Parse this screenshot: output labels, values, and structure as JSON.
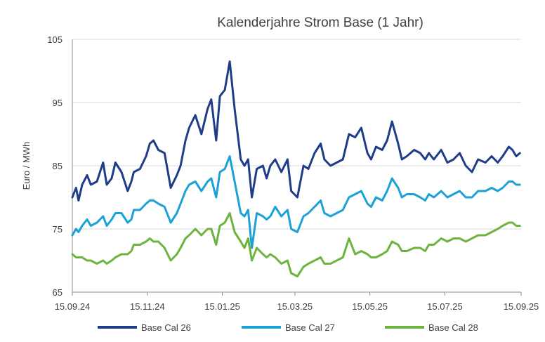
{
  "chart_data": {
    "type": "line",
    "title": "Kalenderjahre Strom Base (1 Jahr)",
    "xlabel": "",
    "ylabel": "Euro / MWh",
    "ylim": [
      65,
      105
    ],
    "yticks": [
      65,
      75,
      85,
      95,
      105
    ],
    "xlim": [
      0,
      365
    ],
    "xticks": [
      {
        "label": "15.09.24",
        "x": 0
      },
      {
        "label": "15.11.24",
        "x": 61
      },
      {
        "label": "15.01.25",
        "x": 122
      },
      {
        "label": "15.03.25",
        "x": 181
      },
      {
        "label": "15.05.25",
        "x": 242
      },
      {
        "label": "15.07.25",
        "x": 303
      },
      {
        "label": "15.09.25",
        "x": 365
      }
    ],
    "grid": true,
    "legend_position": "bottom",
    "series": [
      {
        "name": "Base Cal 26",
        "color": "#1f3c88",
        "x": [
          0,
          3,
          5,
          8,
          12,
          15,
          20,
          25,
          28,
          32,
          35,
          40,
          45,
          48,
          50,
          55,
          60,
          63,
          66,
          70,
          75,
          80,
          85,
          88,
          92,
          95,
          100,
          105,
          110,
          113,
          117,
          120,
          124,
          128,
          132,
          137,
          140,
          143,
          146,
          150,
          155,
          158,
          161,
          165,
          170,
          175,
          178,
          183,
          188,
          192,
          197,
          202,
          205,
          210,
          215,
          220,
          225,
          230,
          235,
          240,
          243,
          247,
          252,
          256,
          260,
          265,
          268,
          272,
          278,
          283,
          287,
          290,
          294,
          300,
          305,
          310,
          315,
          320,
          325,
          330,
          336,
          341,
          346,
          350,
          355,
          358,
          361,
          364
        ],
        "values": [
          80,
          81.5,
          79.5,
          82,
          83.5,
          82,
          82.5,
          85.5,
          82,
          83,
          85.5,
          84,
          81,
          82.5,
          84,
          84.5,
          86.5,
          88.5,
          89,
          87.5,
          87,
          81.5,
          83.5,
          85,
          89,
          91,
          93,
          90,
          94,
          95.5,
          89,
          96,
          97,
          101.5,
          94,
          86,
          85,
          86,
          80,
          84.5,
          85,
          83,
          85,
          86,
          84,
          86,
          81,
          80,
          85,
          84.5,
          87,
          88.5,
          86,
          85,
          85.5,
          86,
          90,
          89.5,
          91,
          87,
          86,
          88,
          87.5,
          89,
          92,
          88.5,
          86,
          86.5,
          87.5,
          87,
          86,
          87,
          86,
          87.5,
          85.5,
          86,
          87,
          85,
          84,
          86,
          85.5,
          86.5,
          85.5,
          86.5,
          88,
          87.5,
          86.5,
          87
        ]
      },
      {
        "name": "Base Cal 27",
        "color": "#1ba1d6",
        "x": [
          0,
          3,
          5,
          8,
          12,
          15,
          20,
          25,
          28,
          32,
          35,
          40,
          45,
          48,
          50,
          55,
          60,
          63,
          66,
          70,
          75,
          80,
          85,
          88,
          92,
          95,
          100,
          105,
          110,
          113,
          117,
          120,
          124,
          128,
          132,
          137,
          140,
          143,
          146,
          150,
          155,
          158,
          161,
          165,
          170,
          175,
          178,
          183,
          188,
          192,
          197,
          202,
          205,
          210,
          215,
          220,
          225,
          230,
          235,
          240,
          243,
          247,
          252,
          256,
          260,
          265,
          268,
          272,
          278,
          283,
          287,
          290,
          294,
          300,
          305,
          310,
          315,
          320,
          325,
          330,
          336,
          341,
          346,
          350,
          355,
          358,
          361,
          364
        ],
        "values": [
          74,
          75,
          74.5,
          75.5,
          76.5,
          75.5,
          76,
          77,
          75.5,
          76.5,
          77.5,
          77.5,
          76,
          76.5,
          78,
          78,
          79,
          79.5,
          79.5,
          79,
          78.5,
          76,
          77.5,
          79,
          81,
          82,
          82.5,
          81,
          82.5,
          83,
          80,
          84,
          84.5,
          86.5,
          82.5,
          77.5,
          77,
          78,
          72,
          77.5,
          77,
          76.5,
          77,
          78.5,
          77,
          78,
          75,
          74.5,
          77,
          77.5,
          78.5,
          79.5,
          77.5,
          77,
          77.5,
          78,
          80,
          80.5,
          81,
          79,
          78.5,
          80,
          79.5,
          81,
          83,
          81.5,
          80,
          80.5,
          80.5,
          80,
          79.5,
          80.5,
          80,
          81,
          80,
          80.5,
          81,
          80,
          80,
          81,
          81,
          81.5,
          81,
          81.5,
          82.5,
          82.5,
          82,
          82
        ]
      },
      {
        "name": "Base Cal 28",
        "color": "#6db33f",
        "x": [
          0,
          3,
          5,
          8,
          12,
          15,
          20,
          25,
          28,
          32,
          35,
          40,
          45,
          48,
          50,
          55,
          60,
          63,
          66,
          70,
          75,
          80,
          85,
          88,
          92,
          95,
          100,
          105,
          110,
          113,
          117,
          120,
          124,
          128,
          132,
          137,
          140,
          143,
          146,
          150,
          155,
          158,
          161,
          165,
          170,
          175,
          178,
          183,
          188,
          192,
          197,
          202,
          205,
          210,
          215,
          220,
          225,
          230,
          235,
          240,
          243,
          247,
          252,
          256,
          260,
          265,
          268,
          272,
          278,
          283,
          287,
          290,
          294,
          300,
          305,
          310,
          315,
          320,
          325,
          330,
          336,
          341,
          346,
          350,
          355,
          358,
          361,
          364
        ],
        "values": [
          71,
          70.5,
          70.5,
          70.5,
          70,
          70,
          69.5,
          70,
          69.5,
          70,
          70.5,
          71,
          71,
          71.5,
          72.5,
          72.5,
          73,
          73.5,
          73,
          73,
          72,
          70,
          71,
          72,
          73.5,
          74,
          75,
          74,
          75,
          75,
          72.5,
          75.5,
          76,
          77.5,
          74.5,
          73,
          72,
          73.5,
          70,
          72,
          71,
          70.5,
          71,
          70.5,
          69.5,
          70,
          68,
          67.5,
          69,
          69.5,
          70,
          70.5,
          69.5,
          69.5,
          70,
          70.5,
          73.5,
          71,
          71.5,
          71,
          70.5,
          70.5,
          71,
          71.5,
          73,
          72.5,
          71.5,
          71.5,
          72,
          72,
          71.5,
          72.5,
          72.5,
          73.5,
          73,
          73.5,
          73.5,
          73,
          73.5,
          74,
          74,
          74.5,
          75,
          75.5,
          76,
          76,
          75.5,
          75.5
        ]
      }
    ]
  }
}
